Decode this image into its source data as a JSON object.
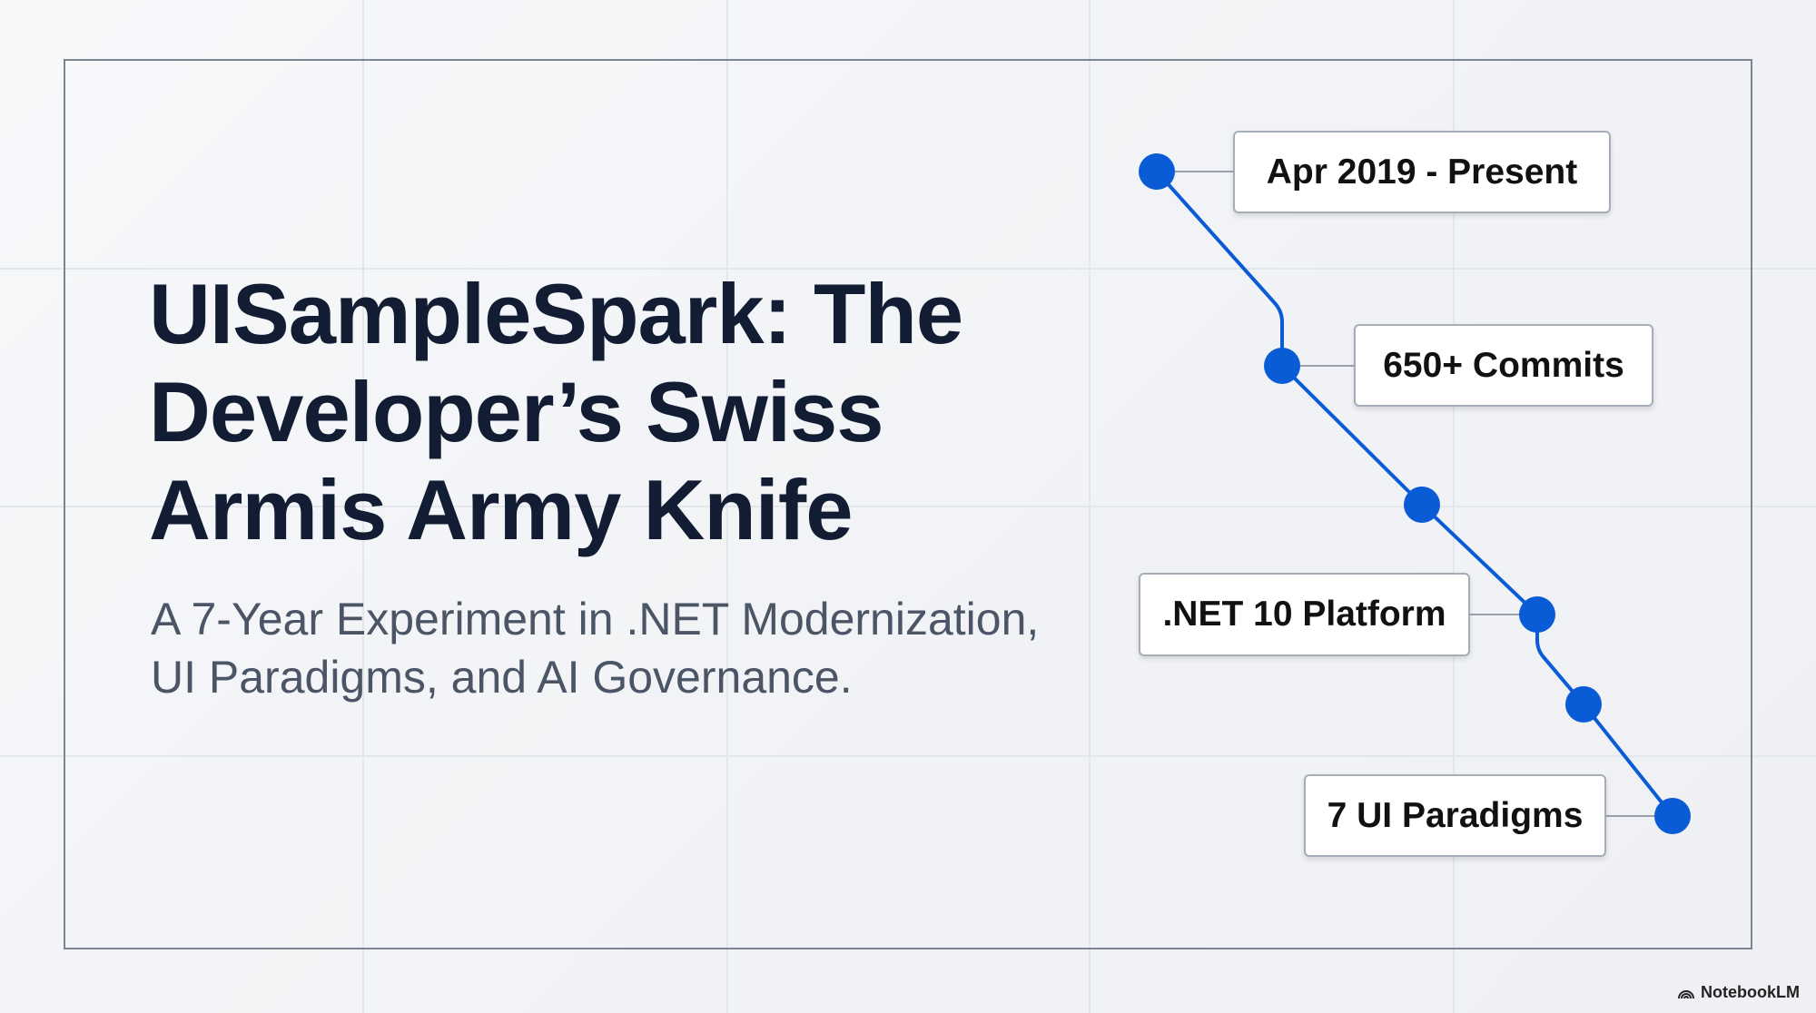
{
  "slide": {
    "title": "UISampleSpark: The Developer’s Swiss Armis Army Knife",
    "subtitle": "A 7-Year Experiment in .NET Modernization, UI Paradigms, and AI Governance."
  },
  "timeline": {
    "accent_color": "#0a5bd6",
    "labels": [
      {
        "text": "Apr 2019 - Present"
      },
      {
        "text": "650+ Commits"
      },
      {
        "text": ".NET 10 Platform"
      },
      {
        "text": "7 UI Paradigms"
      }
    ]
  },
  "branding": {
    "name": "NotebookLM",
    "icon": "notebooklm-logo-icon"
  }
}
